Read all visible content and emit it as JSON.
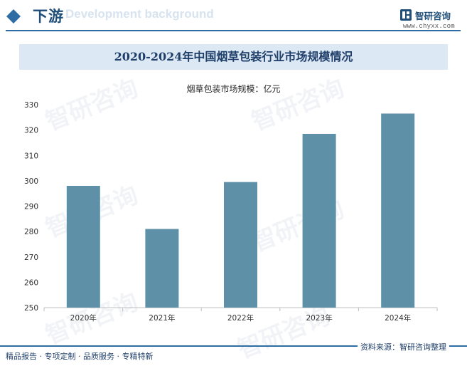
{
  "header": {
    "title": "下游",
    "background_text": "Development background",
    "logo_text": "智研咨询",
    "logo_url": "www.chyxx.com"
  },
  "chart_title": "2020-2024年中国烟草包装行业市场规模情况",
  "colors": {
    "bar": "#5e90a8",
    "accent": "#2e6da4",
    "title_band": "#dce9f5",
    "dark_blue": "#1f4e79"
  },
  "chart_data": {
    "type": "bar",
    "title": "2020-2024年中国烟草包装行业市场规模情况",
    "series_label": "烟草包装市场规模：亿元",
    "categories": [
      "2020年",
      "2021年",
      "2022年",
      "2023年",
      "2024年"
    ],
    "values": [
      298,
      281,
      299.5,
      318.5,
      326.5
    ],
    "ylim": [
      250,
      330
    ],
    "yticks": [
      250,
      260,
      270,
      280,
      290,
      300,
      310,
      320,
      330
    ],
    "xlabel": "",
    "ylabel": ""
  },
  "footer": {
    "left": "精品报告 · 专项定制 · 品质服务 · 专精特新",
    "right": "资料来源：智研咨询整理"
  },
  "watermark": "智研咨询"
}
